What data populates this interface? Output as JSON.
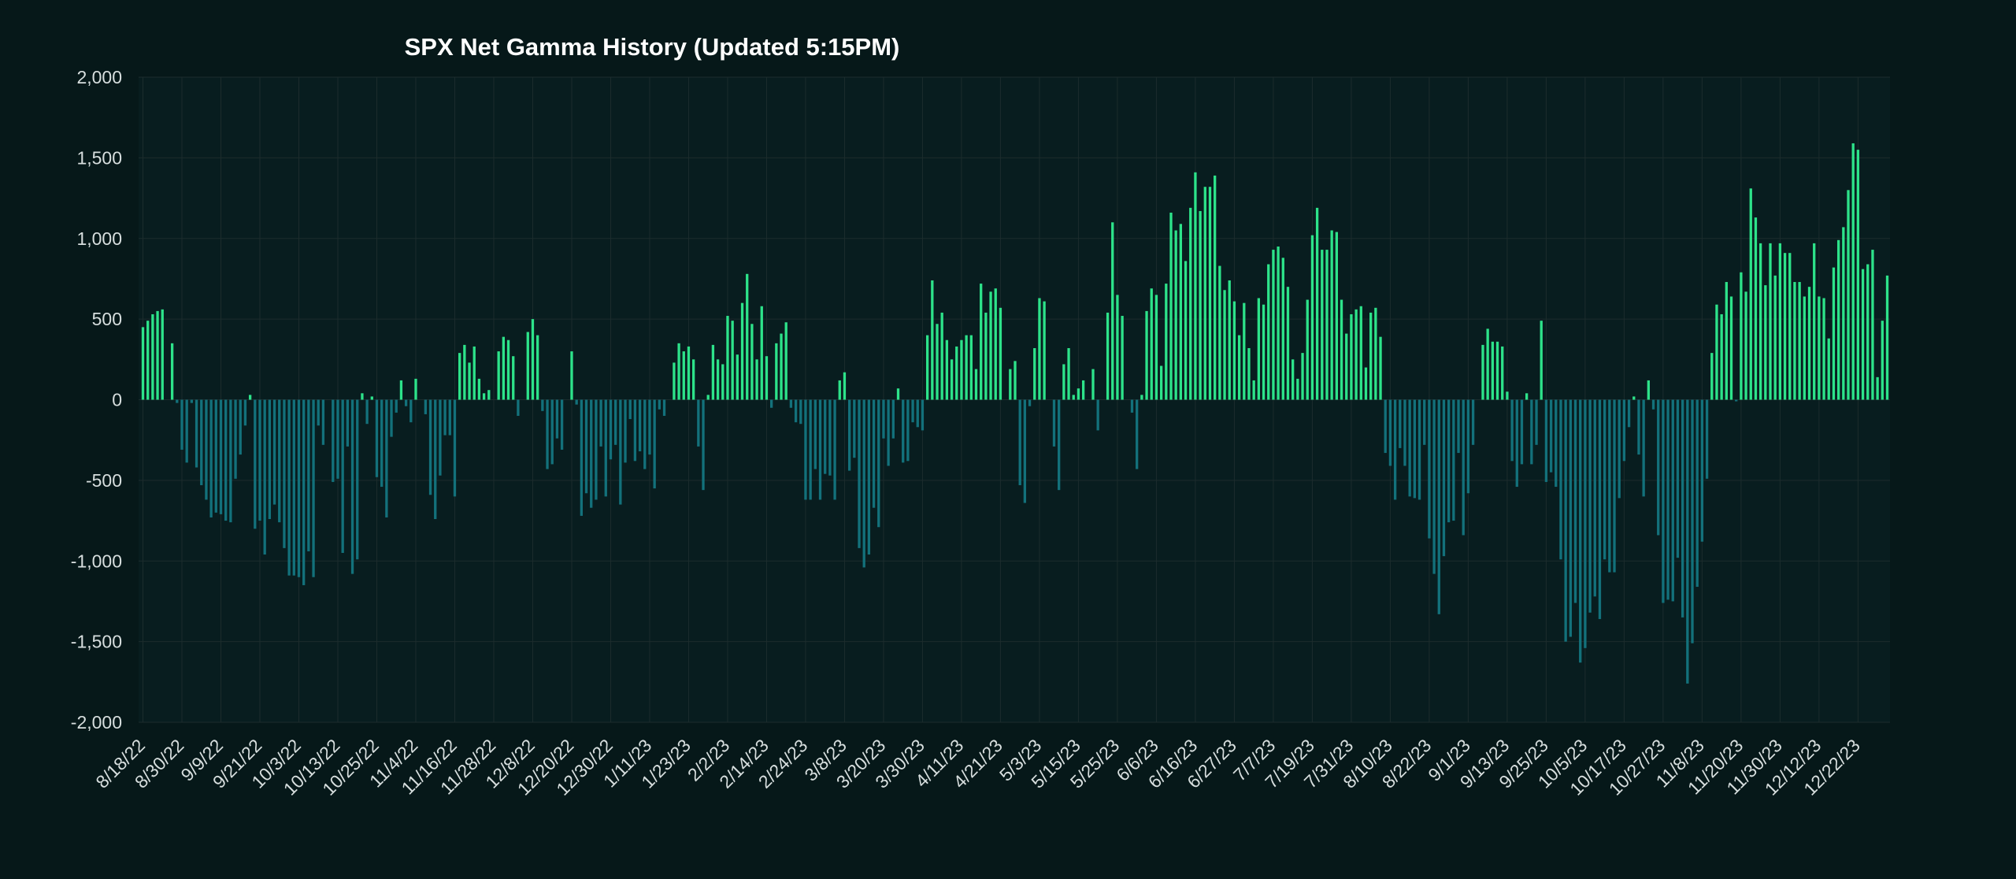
{
  "colors": {
    "background": "#061819",
    "positive": "#2de38a",
    "negative": "#13717b",
    "grid": "#1c2c2d",
    "text": "#d7dede"
  },
  "chart_data": {
    "type": "bar",
    "title": "SPX Net Gamma History (Updated 5:15PM)",
    "xlabel": "",
    "ylabel": "",
    "ylim": [
      -2000,
      2000
    ],
    "yticks": [
      2000,
      1500,
      1000,
      500,
      0,
      -500,
      -1000,
      -1500,
      -2000
    ],
    "ytick_labels": [
      "2,000",
      "1,500",
      "1,000",
      "500",
      "0",
      "-500",
      "-1,000",
      "-1,500",
      "-2,000"
    ],
    "grid": true,
    "x_tick_labels": [
      {
        "index": 0,
        "label": "8/18/22"
      },
      {
        "index": 8,
        "label": "8/30/22"
      },
      {
        "index": 16,
        "label": "9/9/22"
      },
      {
        "index": 24,
        "label": "9/21/22"
      },
      {
        "index": 32,
        "label": "10/3/22"
      },
      {
        "index": 40,
        "label": "10/13/22"
      },
      {
        "index": 48,
        "label": "10/25/22"
      },
      {
        "index": 56,
        "label": "11/4/22"
      },
      {
        "index": 64,
        "label": "11/16/22"
      },
      {
        "index": 72,
        "label": "11/28/22"
      },
      {
        "index": 80,
        "label": "12/8/22"
      },
      {
        "index": 88,
        "label": "12/20/22"
      },
      {
        "index": 96,
        "label": "12/30/22"
      },
      {
        "index": 104,
        "label": "1/11/23"
      },
      {
        "index": 112,
        "label": "1/23/23"
      },
      {
        "index": 120,
        "label": "2/2/23"
      },
      {
        "index": 128,
        "label": "2/14/23"
      },
      {
        "index": 136,
        "label": "2/24/23"
      },
      {
        "index": 144,
        "label": "3/8/23"
      },
      {
        "index": 152,
        "label": "3/20/23"
      },
      {
        "index": 160,
        "label": "3/30/23"
      },
      {
        "index": 168,
        "label": "4/11/23"
      },
      {
        "index": 176,
        "label": "4/21/23"
      },
      {
        "index": 184,
        "label": "5/3/23"
      },
      {
        "index": 192,
        "label": "5/15/23"
      },
      {
        "index": 200,
        "label": "5/25/23"
      },
      {
        "index": 208,
        "label": "6/6/23"
      },
      {
        "index": 216,
        "label": "6/16/23"
      },
      {
        "index": 224,
        "label": "6/27/23"
      },
      {
        "index": 232,
        "label": "7/7/23"
      },
      {
        "index": 240,
        "label": "7/19/23"
      },
      {
        "index": 248,
        "label": "7/31/23"
      },
      {
        "index": 256,
        "label": "8/10/23"
      },
      {
        "index": 264,
        "label": "8/22/23"
      },
      {
        "index": 272,
        "label": "9/1/23"
      },
      {
        "index": 280,
        "label": "9/13/23"
      },
      {
        "index": 288,
        "label": "9/25/23"
      },
      {
        "index": 296,
        "label": "10/5/23"
      },
      {
        "index": 304,
        "label": "10/17/23"
      },
      {
        "index": 312,
        "label": "10/27/23"
      },
      {
        "index": 320,
        "label": "11/8/23"
      },
      {
        "index": 328,
        "label": "11/20/23"
      },
      {
        "index": 336,
        "label": "11/30/23"
      },
      {
        "index": 344,
        "label": "12/12/23"
      },
      {
        "index": 352,
        "label": "12/22/23"
      }
    ],
    "values": [
      450,
      490,
      530,
      550,
      560,
      0,
      350,
      -20,
      -310,
      -390,
      -20,
      -420,
      -530,
      -620,
      -730,
      -700,
      -710,
      -750,
      -760,
      -490,
      -340,
      -160,
      30,
      -800,
      -750,
      -960,
      -740,
      -650,
      -760,
      -920,
      -1090,
      -1090,
      -1100,
      -1150,
      -940,
      -1100,
      -160,
      -280,
      0,
      -510,
      -490,
      -950,
      -290,
      -1080,
      -990,
      40,
      -150,
      20,
      -480,
      -540,
      -730,
      -230,
      -80,
      120,
      -40,
      -140,
      130,
      0,
      -90,
      -590,
      -740,
      -470,
      -220,
      -220,
      -600,
      290,
      340,
      230,
      330,
      130,
      40,
      60,
      0,
      300,
      390,
      370,
      270,
      -100,
      0,
      420,
      500,
      400,
      -70,
      -430,
      -400,
      -240,
      -310,
      0,
      300,
      -30,
      -720,
      -580,
      -670,
      -620,
      -290,
      -600,
      -370,
      -280,
      -650,
      -390,
      -120,
      -380,
      -320,
      -430,
      -340,
      -550,
      -60,
      -100,
      0,
      230,
      350,
      300,
      330,
      250,
      -290,
      -560,
      30,
      340,
      250,
      220,
      520,
      490,
      280,
      600,
      780,
      470,
      250,
      580,
      270,
      -50,
      350,
      410,
      480,
      -50,
      -140,
      -150,
      -620,
      -620,
      -430,
      -620,
      -460,
      -470,
      -620,
      120,
      170,
      -440,
      -360,
      -920,
      -1040,
      -960,
      -670,
      -790,
      -240,
      -410,
      -240,
      70,
      -390,
      -380,
      -140,
      -170,
      -190,
      400,
      740,
      470,
      540,
      370,
      250,
      330,
      370,
      400,
      400,
      190,
      720,
      540,
      670,
      690,
      570,
      0,
      190,
      240,
      -530,
      -640,
      -40,
      320,
      630,
      610,
      0,
      -290,
      -560,
      220,
      320,
      30,
      70,
      120,
      0,
      190,
      -190,
      0,
      540,
      1100,
      650,
      520,
      0,
      -80,
      -430,
      30,
      550,
      690,
      650,
      210,
      720,
      1160,
      1050,
      1090,
      860,
      1190,
      1410,
      1170,
      1320,
      1320,
      1390,
      830,
      680,
      740,
      610,
      400,
      600,
      320,
      120,
      630,
      590,
      840,
      930,
      950,
      880,
      700,
      250,
      130,
      290,
      620,
      1020,
      1190,
      930,
      930,
      1050,
      1040,
      620,
      410,
      530,
      560,
      580,
      200,
      540,
      570,
      390,
      -330,
      -410,
      -620,
      -300,
      -410,
      -600,
      -610,
      -620,
      -280,
      -860,
      -1080,
      -1330,
      -970,
      -760,
      -750,
      -330,
      -840,
      -580,
      -280,
      0,
      340,
      440,
      360,
      360,
      330,
      50,
      -380,
      -540,
      -400,
      40,
      -400,
      -280,
      490,
      -510,
      -450,
      -540,
      -990,
      -1500,
      -1470,
      -1260,
      -1630,
      -1540,
      -1320,
      -1220,
      -1360,
      -990,
      -1070,
      -1070,
      -610,
      -380,
      -170,
      20,
      -340,
      -600,
      120,
      -60,
      -840,
      -1260,
      -1240,
      -1250,
      -980,
      -1350,
      -1760,
      -1510,
      -1160,
      -880,
      -490,
      290,
      590,
      530,
      730,
      640,
      -10,
      790,
      670,
      1310,
      1130,
      970,
      710,
      970,
      770,
      970,
      910,
      910,
      730,
      730,
      640,
      700,
      970,
      640,
      630,
      380,
      820,
      990,
      1070,
      1300,
      1590,
      1550,
      810,
      840,
      930,
      140,
      490,
      770
    ]
  }
}
